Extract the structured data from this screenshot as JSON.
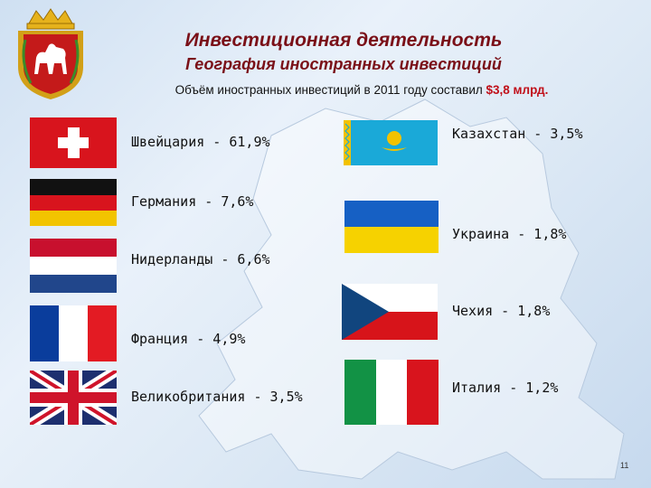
{
  "header": {
    "title": "Инвестиционная деятельность",
    "subtitle": "География иностранных инвестиций",
    "summary_prefix": "Объём иностранных инвестиций в 2011 году составил",
    "summary_amount": "$3,8 млрд."
  },
  "countries_left": [
    {
      "label": "Швейцария - 61,9%",
      "flag": "switzerland-flag"
    },
    {
      "label": "Германия - 7,6%",
      "flag": "germany-flag"
    },
    {
      "label": "Нидерланды - 6,6%",
      "flag": "netherlands-flag"
    },
    {
      "label": "Франция - 4,9%",
      "flag": "france-flag"
    },
    {
      "label": "Великобритания - 3,5%",
      "flag": "uk-flag"
    }
  ],
  "countries_right": [
    {
      "label": "Казахстан - 3,5%",
      "flag": "kazakhstan-flag"
    },
    {
      "label": "Украина - 1,8%",
      "flag": "ukraine-flag"
    },
    {
      "label": "Чехия - 1,8%",
      "flag": "czech-flag"
    },
    {
      "label": "Италия - 1,2%",
      "flag": "italy-flag"
    }
  ],
  "page_number": "11",
  "colors": {
    "title": "#7a1018",
    "amount": "#c0101a"
  }
}
